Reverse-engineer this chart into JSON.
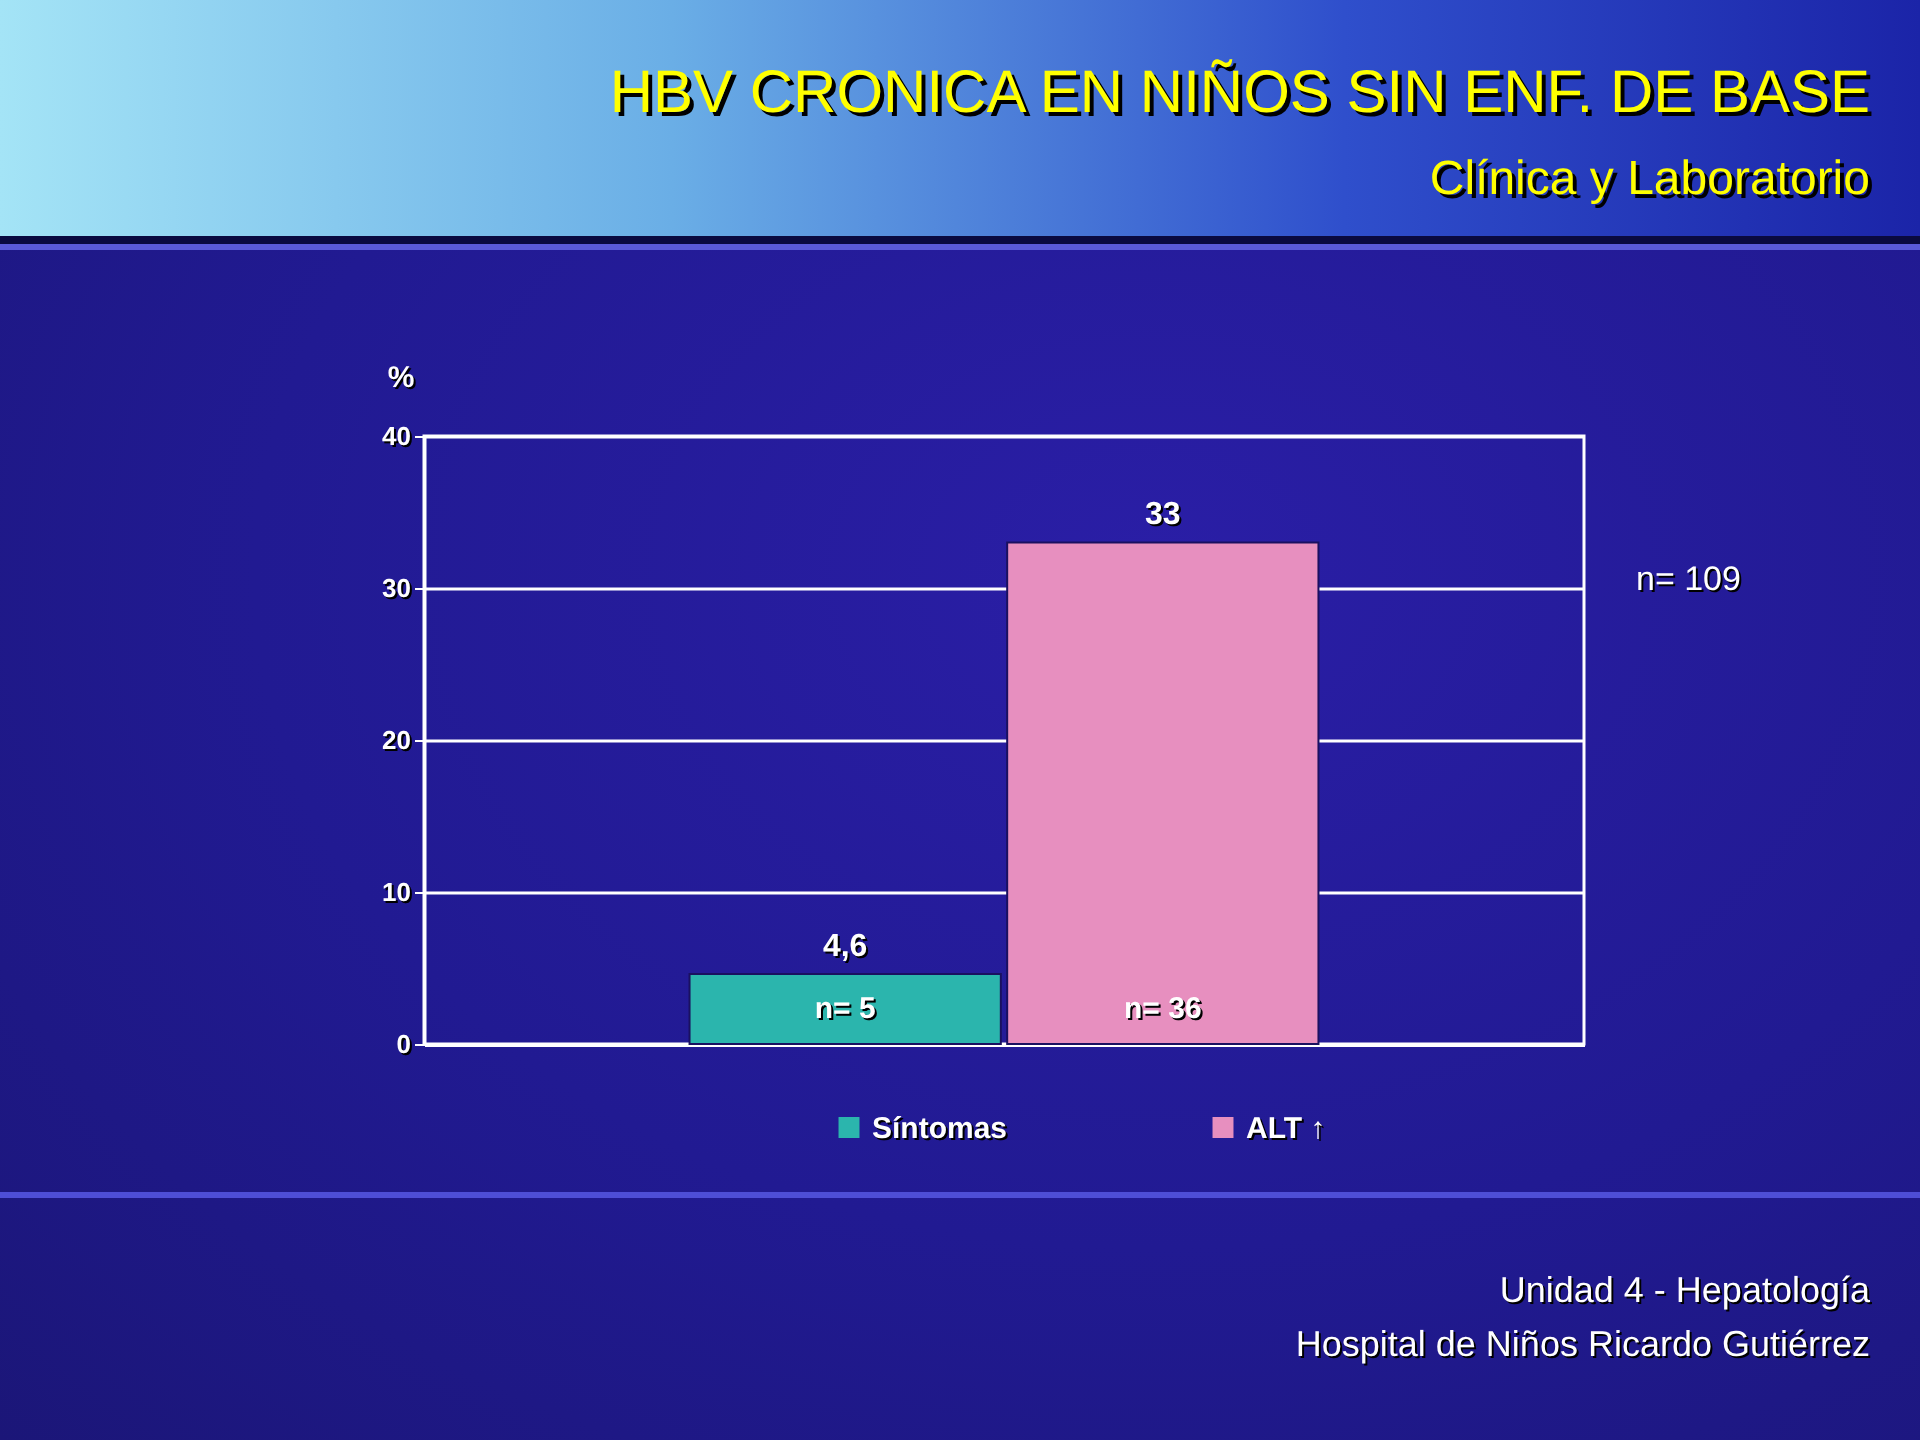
{
  "chart_data": {
    "type": "bar",
    "title": "HBV CRONICA EN NIÑOS SIN ENF. DE BASE",
    "subtitle": "Clínica y Laboratorio",
    "ylabel": "%",
    "categories": [
      null
    ],
    "series": [
      {
        "name": "Síntomas",
        "color": "#2bb5ad",
        "values": [
          4.6
        ],
        "value_labels": [
          "4,6"
        ]
      },
      {
        "name": "ALT ↑",
        "color": "#e78fbf",
        "values": [
          33
        ],
        "value_labels": [
          "33"
        ]
      }
    ],
    "ylim": [
      0,
      40
    ],
    "yticks": [
      0,
      10,
      20,
      30,
      40
    ],
    "grid": "y",
    "legend": "bottom",
    "annotations": [
      "n= 5",
      "n= 36",
      "n= 109",
      "Unidad 4 - Hepatología",
      "Hospital de Niños Ricardo Gutiérrez"
    ]
  }
}
